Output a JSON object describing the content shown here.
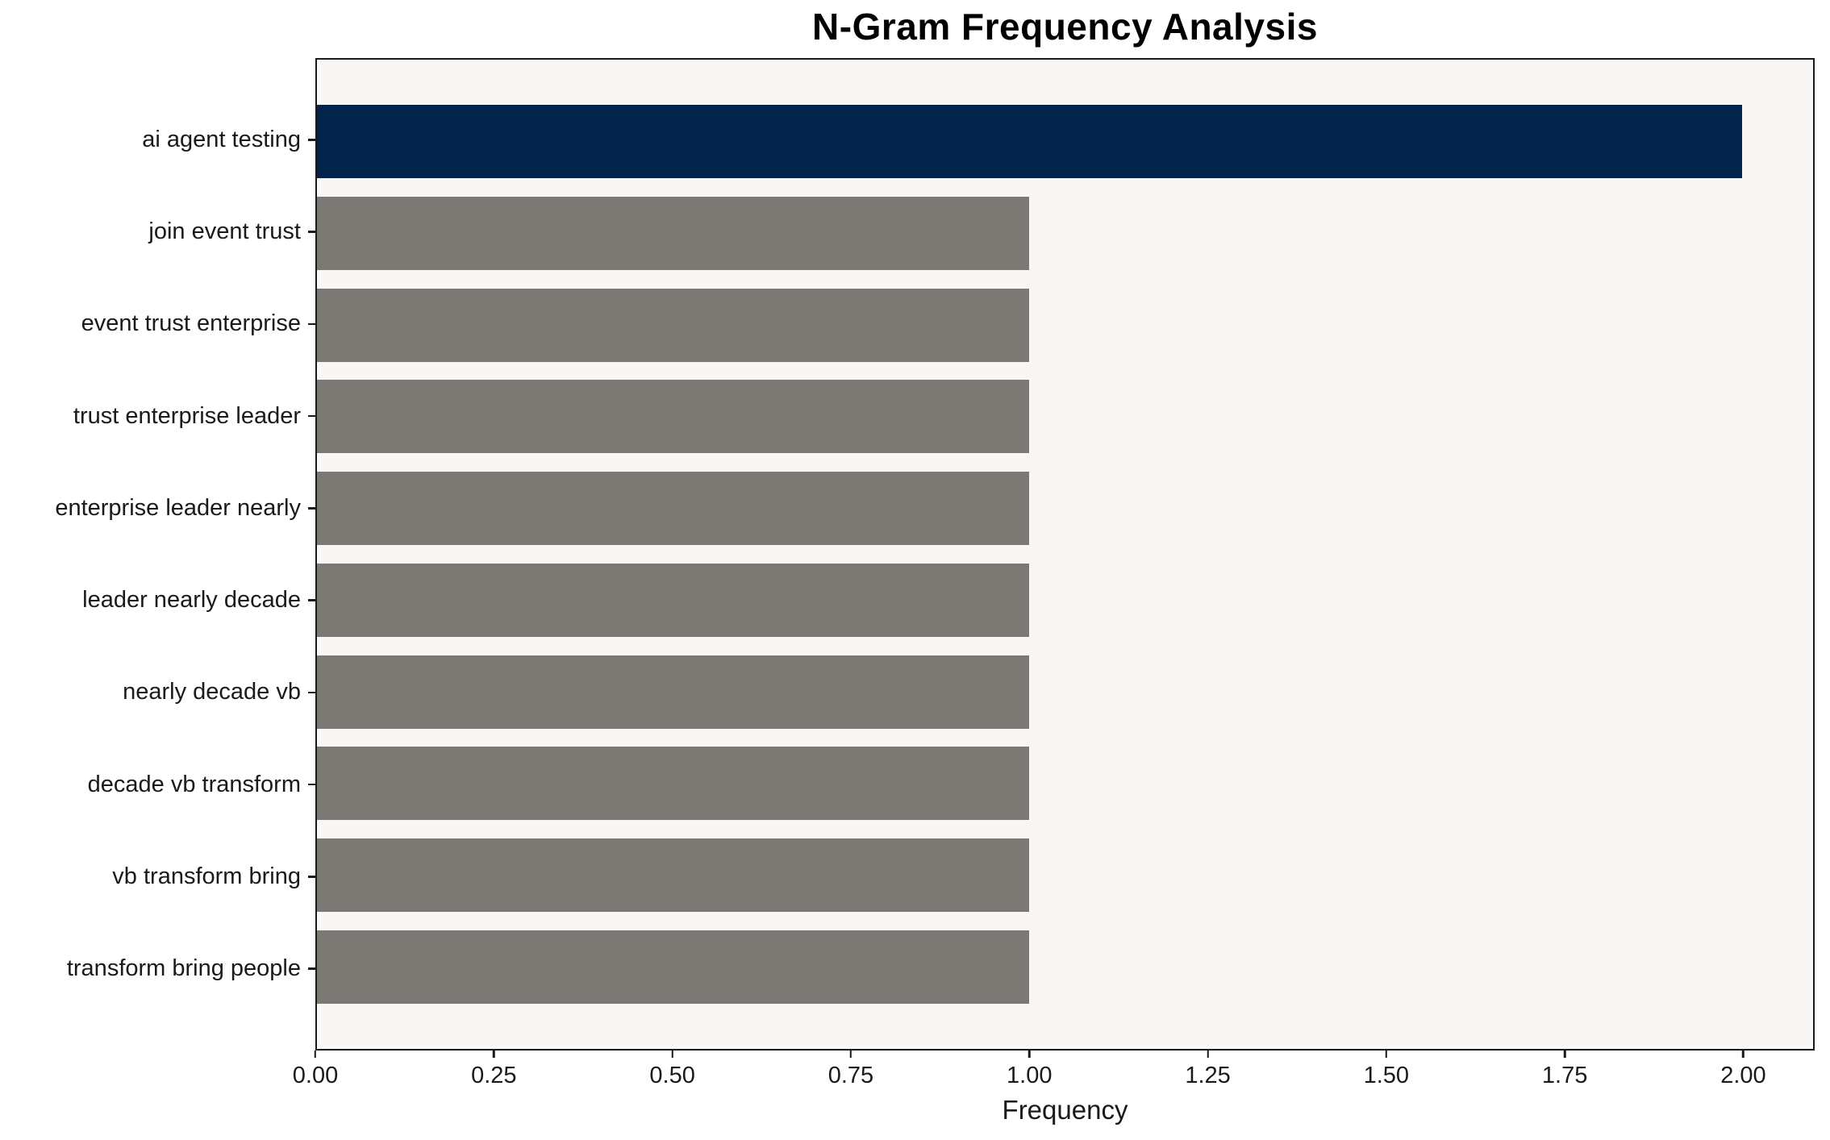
{
  "chart_data": {
    "type": "bar",
    "orientation": "horizontal",
    "title": "N-Gram Frequency Analysis",
    "xlabel": "Frequency",
    "ylabel": "",
    "categories": [
      "ai agent testing",
      "join event trust",
      "event trust enterprise",
      "trust enterprise leader",
      "enterprise leader nearly",
      "leader nearly decade",
      "nearly decade vb",
      "decade vb transform",
      "vb transform bring",
      "transform bring people"
    ],
    "values": [
      2,
      1,
      1,
      1,
      1,
      1,
      1,
      1,
      1,
      1
    ],
    "bar_colors": [
      "#02234C",
      "#7A7974",
      "#7A7974",
      "#7A7974",
      "#7A7974",
      "#7A7974",
      "#7A7974",
      "#7A7974",
      "#7A7974",
      "#7A7974"
    ],
    "xlim": [
      0,
      2.1
    ],
    "xticks": [
      0,
      0.25,
      0.5,
      0.75,
      1.0,
      1.25,
      1.5,
      1.75,
      2.0
    ],
    "xtick_labels": [
      "0.00",
      "0.25",
      "0.50",
      "0.75",
      "1.00",
      "1.25",
      "1.50",
      "1.75",
      "2.00"
    ],
    "grid": false,
    "legend": false,
    "colors": {
      "highlight_bar": "#02234C",
      "default_bar": "#7A7974",
      "plot_background": "#F8F7F6",
      "figure_background": "#FFFFFF",
      "spine": "#1A1A1A"
    }
  }
}
